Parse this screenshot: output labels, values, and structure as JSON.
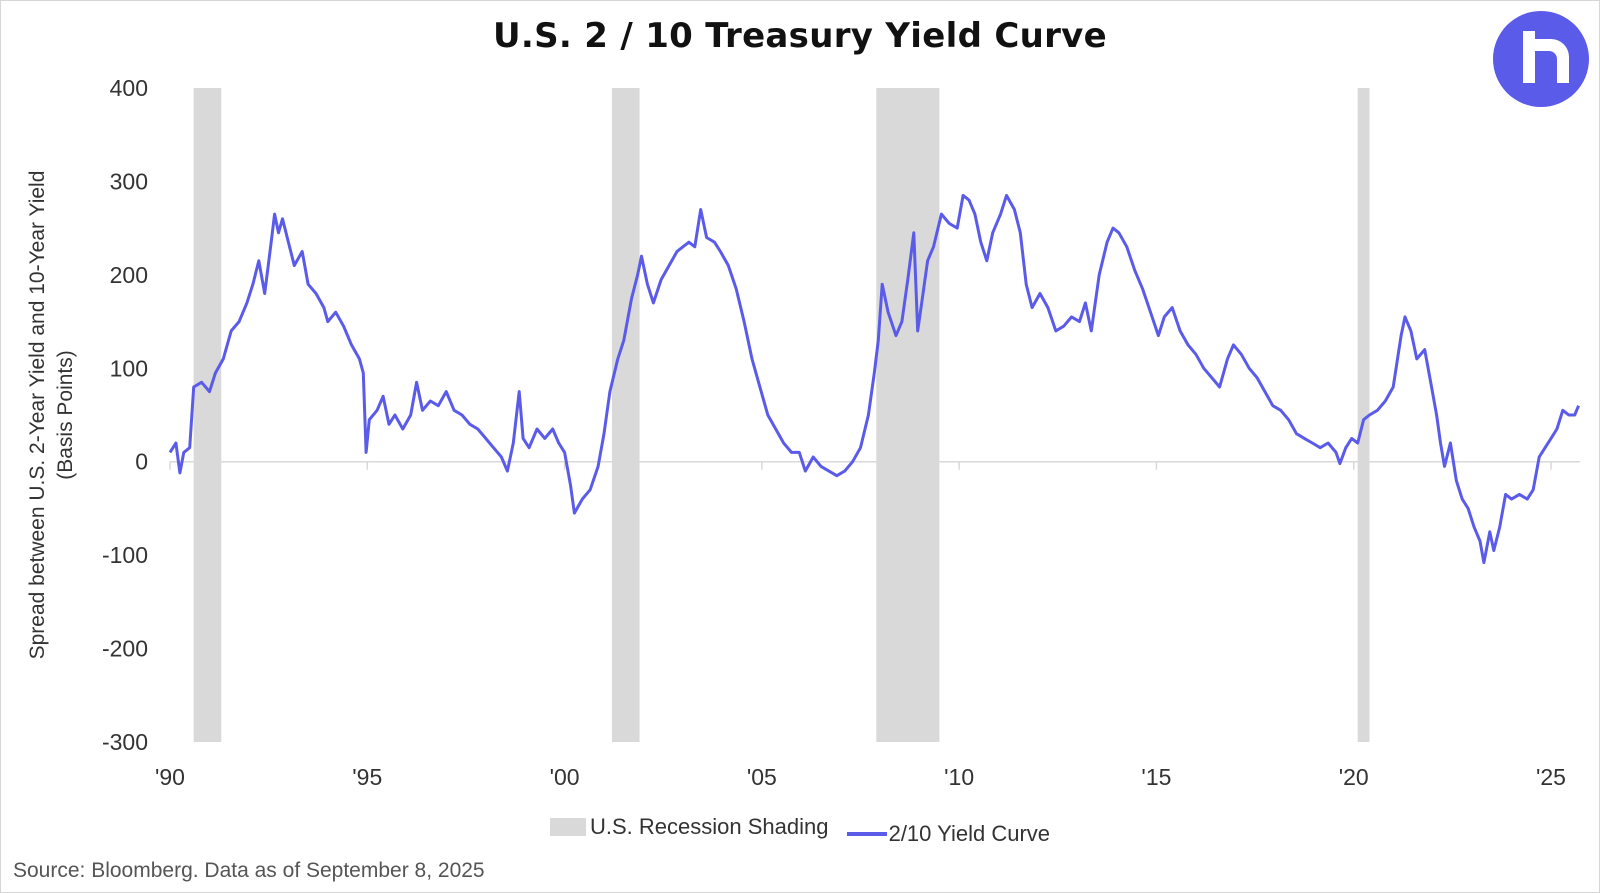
{
  "title": "U.S. 2 / 10 Treasury Yield Curve",
  "source": "Source: Bloomberg. Data as of September 8, 2025",
  "colors": {
    "line": "#5b5bea",
    "recession": "#d9d9d9",
    "logo_bg": "#5b5bea"
  },
  "logo": {
    "icon": "brand-logo-icon"
  },
  "chart_data": {
    "type": "line",
    "title": "U.S. 2 / 10 Treasury Yield Curve",
    "ylabel_lines": [
      "Spread between U.S. 2-Year Yield and 10-Year Yield",
      "(Basis Points)"
    ],
    "xlabel": "",
    "ylim": [
      -300,
      400
    ],
    "xlim": [
      1990,
      2025.75
    ],
    "yticks": [
      400,
      300,
      200,
      100,
      0,
      -100,
      -200,
      -300
    ],
    "xticks": [
      {
        "value": 1990,
        "label": "'90"
      },
      {
        "value": 1995,
        "label": "'95"
      },
      {
        "value": 2000,
        "label": "'00"
      },
      {
        "value": 2005,
        "label": "'05"
      },
      {
        "value": 2010,
        "label": "'10"
      },
      {
        "value": 2015,
        "label": "'15"
      },
      {
        "value": 2020,
        "label": "'20"
      },
      {
        "value": 2025,
        "label": "'25"
      }
    ],
    "grid": false,
    "legend_position": "bottom",
    "recessions": [
      {
        "start": 1990.6,
        "end": 1991.3
      },
      {
        "start": 2001.2,
        "end": 2001.9
      },
      {
        "start": 2007.9,
        "end": 2009.5
      },
      {
        "start": 2020.1,
        "end": 2020.4
      }
    ],
    "series": [
      {
        "name": "2/10 Yield Curve",
        "points": [
          [
            1990.0,
            10
          ],
          [
            1990.15,
            20
          ],
          [
            1990.25,
            -12
          ],
          [
            1990.35,
            10
          ],
          [
            1990.5,
            15
          ],
          [
            1990.6,
            80
          ],
          [
            1990.8,
            85
          ],
          [
            1991.0,
            75
          ],
          [
            1991.15,
            95
          ],
          [
            1991.35,
            110
          ],
          [
            1991.55,
            140
          ],
          [
            1991.75,
            150
          ],
          [
            1991.95,
            170
          ],
          [
            1992.1,
            190
          ],
          [
            1992.25,
            215
          ],
          [
            1992.4,
            180
          ],
          [
            1992.55,
            230
          ],
          [
            1992.65,
            265
          ],
          [
            1992.75,
            245
          ],
          [
            1992.85,
            260
          ],
          [
            1993.0,
            235
          ],
          [
            1993.15,
            210
          ],
          [
            1993.35,
            225
          ],
          [
            1993.5,
            190
          ],
          [
            1993.7,
            180
          ],
          [
            1993.9,
            165
          ],
          [
            1994.0,
            150
          ],
          [
            1994.2,
            160
          ],
          [
            1994.4,
            145
          ],
          [
            1994.6,
            125
          ],
          [
            1994.8,
            110
          ],
          [
            1994.9,
            95
          ],
          [
            1994.97,
            10
          ],
          [
            1995.05,
            45
          ],
          [
            1995.25,
            55
          ],
          [
            1995.4,
            70
          ],
          [
            1995.55,
            40
          ],
          [
            1995.7,
            50
          ],
          [
            1995.9,
            35
          ],
          [
            1996.1,
            50
          ],
          [
            1996.25,
            85
          ],
          [
            1996.4,
            55
          ],
          [
            1996.6,
            65
          ],
          [
            1996.8,
            60
          ],
          [
            1997.0,
            75
          ],
          [
            1997.2,
            55
          ],
          [
            1997.4,
            50
          ],
          [
            1997.6,
            40
          ],
          [
            1997.8,
            35
          ],
          [
            1998.0,
            25
          ],
          [
            1998.2,
            15
          ],
          [
            1998.4,
            5
          ],
          [
            1998.55,
            -10
          ],
          [
            1998.7,
            20
          ],
          [
            1998.85,
            75
          ],
          [
            1998.95,
            25
          ],
          [
            1999.1,
            15
          ],
          [
            1999.3,
            35
          ],
          [
            1999.5,
            25
          ],
          [
            1999.7,
            35
          ],
          [
            1999.85,
            20
          ],
          [
            2000.0,
            10
          ],
          [
            2000.15,
            -25
          ],
          [
            2000.25,
            -55
          ],
          [
            2000.45,
            -40
          ],
          [
            2000.65,
            -30
          ],
          [
            2000.85,
            -5
          ],
          [
            2001.0,
            30
          ],
          [
            2001.15,
            75
          ],
          [
            2001.35,
            110
          ],
          [
            2001.5,
            130
          ],
          [
            2001.7,
            175
          ],
          [
            2001.85,
            200
          ],
          [
            2001.95,
            220
          ],
          [
            2002.1,
            190
          ],
          [
            2002.25,
            170
          ],
          [
            2002.45,
            195
          ],
          [
            2002.65,
            210
          ],
          [
            2002.85,
            225
          ],
          [
            2003.0,
            230
          ],
          [
            2003.15,
            235
          ],
          [
            2003.3,
            230
          ],
          [
            2003.45,
            270
          ],
          [
            2003.6,
            240
          ],
          [
            2003.8,
            235
          ],
          [
            2003.95,
            225
          ],
          [
            2004.15,
            210
          ],
          [
            2004.35,
            185
          ],
          [
            2004.55,
            150
          ],
          [
            2004.75,
            110
          ],
          [
            2004.95,
            80
          ],
          [
            2005.15,
            50
          ],
          [
            2005.35,
            35
          ],
          [
            2005.55,
            20
          ],
          [
            2005.75,
            10
          ],
          [
            2005.95,
            10
          ],
          [
            2006.1,
            -10
          ],
          [
            2006.3,
            5
          ],
          [
            2006.5,
            -5
          ],
          [
            2006.7,
            -10
          ],
          [
            2006.9,
            -15
          ],
          [
            2007.1,
            -10
          ],
          [
            2007.3,
            0
          ],
          [
            2007.5,
            15
          ],
          [
            2007.7,
            50
          ],
          [
            2007.85,
            95
          ],
          [
            2007.95,
            130
          ],
          [
            2008.05,
            190
          ],
          [
            2008.2,
            160
          ],
          [
            2008.4,
            135
          ],
          [
            2008.55,
            150
          ],
          [
            2008.7,
            195
          ],
          [
            2008.85,
            245
          ],
          [
            2008.95,
            140
          ],
          [
            2009.05,
            170
          ],
          [
            2009.2,
            215
          ],
          [
            2009.35,
            230
          ],
          [
            2009.55,
            265
          ],
          [
            2009.75,
            255
          ],
          [
            2009.95,
            250
          ],
          [
            2010.1,
            285
          ],
          [
            2010.25,
            280
          ],
          [
            2010.4,
            265
          ],
          [
            2010.55,
            235
          ],
          [
            2010.7,
            215
          ],
          [
            2010.85,
            245
          ],
          [
            2011.05,
            265
          ],
          [
            2011.2,
            285
          ],
          [
            2011.4,
            270
          ],
          [
            2011.55,
            245
          ],
          [
            2011.7,
            190
          ],
          [
            2011.85,
            165
          ],
          [
            2012.05,
            180
          ],
          [
            2012.25,
            165
          ],
          [
            2012.45,
            140
          ],
          [
            2012.65,
            145
          ],
          [
            2012.85,
            155
          ],
          [
            2013.05,
            150
          ],
          [
            2013.2,
            170
          ],
          [
            2013.35,
            140
          ],
          [
            2013.55,
            200
          ],
          [
            2013.75,
            235
          ],
          [
            2013.9,
            250
          ],
          [
            2014.05,
            245
          ],
          [
            2014.25,
            230
          ],
          [
            2014.45,
            205
          ],
          [
            2014.65,
            185
          ],
          [
            2014.85,
            160
          ],
          [
            2015.05,
            135
          ],
          [
            2015.2,
            155
          ],
          [
            2015.4,
            165
          ],
          [
            2015.6,
            140
          ],
          [
            2015.8,
            125
          ],
          [
            2016.0,
            115
          ],
          [
            2016.2,
            100
          ],
          [
            2016.4,
            90
          ],
          [
            2016.6,
            80
          ],
          [
            2016.8,
            110
          ],
          [
            2016.95,
            125
          ],
          [
            2017.15,
            115
          ],
          [
            2017.35,
            100
          ],
          [
            2017.55,
            90
          ],
          [
            2017.75,
            75
          ],
          [
            2017.95,
            60
          ],
          [
            2018.15,
            55
          ],
          [
            2018.35,
            45
          ],
          [
            2018.55,
            30
          ],
          [
            2018.75,
            25
          ],
          [
            2018.95,
            20
          ],
          [
            2019.15,
            15
          ],
          [
            2019.35,
            20
          ],
          [
            2019.55,
            10
          ],
          [
            2019.65,
            -2
          ],
          [
            2019.8,
            15
          ],
          [
            2019.95,
            25
          ],
          [
            2020.1,
            20
          ],
          [
            2020.25,
            45
          ],
          [
            2020.4,
            50
          ],
          [
            2020.6,
            55
          ],
          [
            2020.8,
            65
          ],
          [
            2021.0,
            80
          ],
          [
            2021.2,
            135
          ],
          [
            2021.3,
            155
          ],
          [
            2021.45,
            140
          ],
          [
            2021.6,
            110
          ],
          [
            2021.8,
            120
          ],
          [
            2021.95,
            85
          ],
          [
            2022.1,
            50
          ],
          [
            2022.2,
            20
          ],
          [
            2022.3,
            -5
          ],
          [
            2022.45,
            20
          ],
          [
            2022.6,
            -20
          ],
          [
            2022.75,
            -40
          ],
          [
            2022.9,
            -50
          ],
          [
            2023.05,
            -70
          ],
          [
            2023.2,
            -85
          ],
          [
            2023.3,
            -108
          ],
          [
            2023.45,
            -75
          ],
          [
            2023.55,
            -95
          ],
          [
            2023.7,
            -70
          ],
          [
            2023.85,
            -35
          ],
          [
            2024.0,
            -40
          ],
          [
            2024.2,
            -35
          ],
          [
            2024.4,
            -40
          ],
          [
            2024.55,
            -30
          ],
          [
            2024.7,
            5
          ],
          [
            2024.85,
            15
          ],
          [
            2025.0,
            25
          ],
          [
            2025.15,
            35
          ],
          [
            2025.3,
            55
          ],
          [
            2025.45,
            50
          ],
          [
            2025.6,
            50
          ],
          [
            2025.7,
            60
          ]
        ]
      }
    ]
  },
  "legend": {
    "recession_label": "U.S. Recession Shading",
    "series_label": "2/10 Yield Curve"
  }
}
